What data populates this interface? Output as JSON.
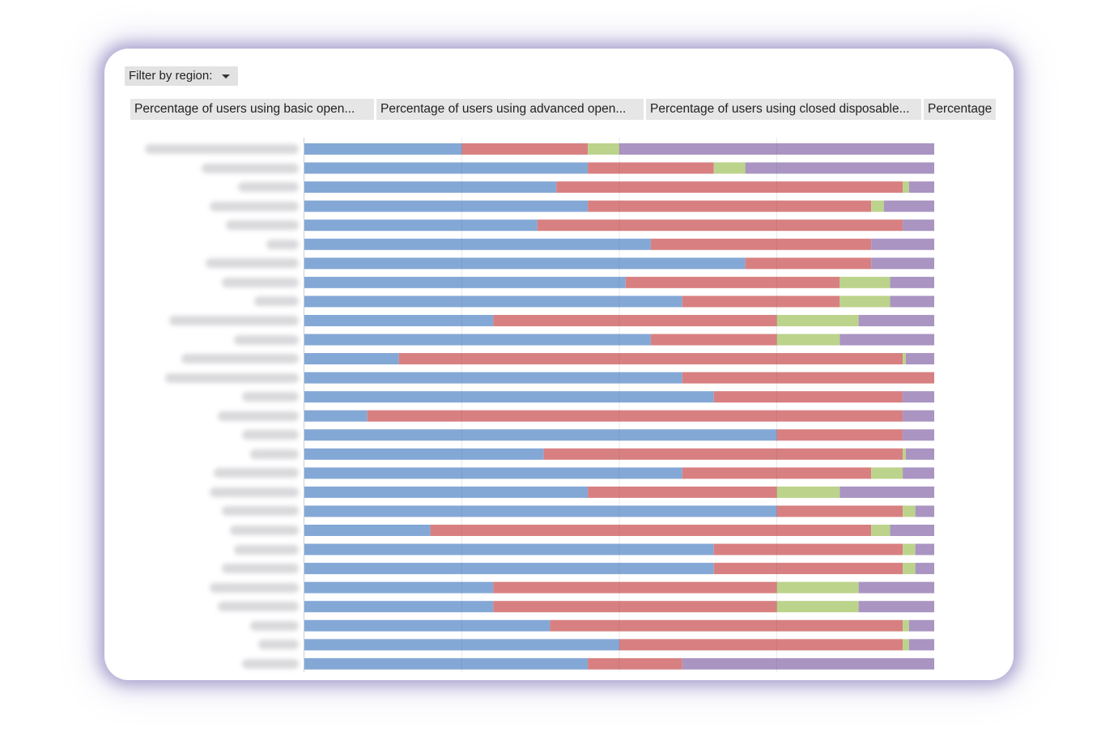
{
  "filter": {
    "label": "Filter by region:",
    "icon": "caret-down-icon"
  },
  "legend": [
    {
      "label": "Percentage of users using basic open...",
      "color": "#84a8d6"
    },
    {
      "label": "Percentage of users using advanced open...",
      "color": "#d88081"
    },
    {
      "label": "Percentage of users using closed disposable...",
      "color": "#bcd38b"
    },
    {
      "label": "Percentage",
      "color": "#a994c2"
    }
  ],
  "chart_data": {
    "type": "bar",
    "orientation": "horizontal",
    "stacked": true,
    "grid": true,
    "xlim": [
      0,
      100
    ],
    "category_labels_visible": false,
    "series": [
      {
        "name": "Percentage of users using basic open...",
        "color": "#84a8d6",
        "values": [
          25,
          45,
          40,
          45,
          37,
          55,
          70,
          51,
          60,
          30,
          55,
          15,
          60,
          65,
          10,
          75,
          38,
          60,
          45,
          75,
          20,
          65,
          65,
          30,
          30,
          39,
          50,
          45
        ]
      },
      {
        "name": "Percentage of users using advanced open...",
        "color": "#d88081",
        "values": [
          20,
          20,
          55,
          45,
          58,
          35,
          20,
          34,
          25,
          45,
          20,
          80,
          40,
          30,
          85,
          20,
          57,
          30,
          30,
          20,
          70,
          30,
          30,
          45,
          45,
          56,
          45,
          15
        ]
      },
      {
        "name": "Percentage of users using closed disposable...",
        "color": "#bcd38b",
        "values": [
          5,
          5,
          1,
          2,
          0,
          0,
          0,
          8,
          8,
          13,
          10,
          0.5,
          0,
          0,
          0,
          0,
          0.5,
          5,
          10,
          2,
          3,
          2,
          2,
          13,
          13,
          1,
          1,
          0
        ]
      },
      {
        "name": "Percentage",
        "color": "#a994c2",
        "values": [
          50,
          30,
          4,
          8,
          5,
          10,
          10,
          7,
          7,
          12,
          15,
          4.5,
          0,
          5,
          5,
          5,
          4.5,
          5,
          15,
          3,
          7,
          3,
          3,
          12,
          12,
          4,
          4,
          40
        ]
      }
    ]
  }
}
